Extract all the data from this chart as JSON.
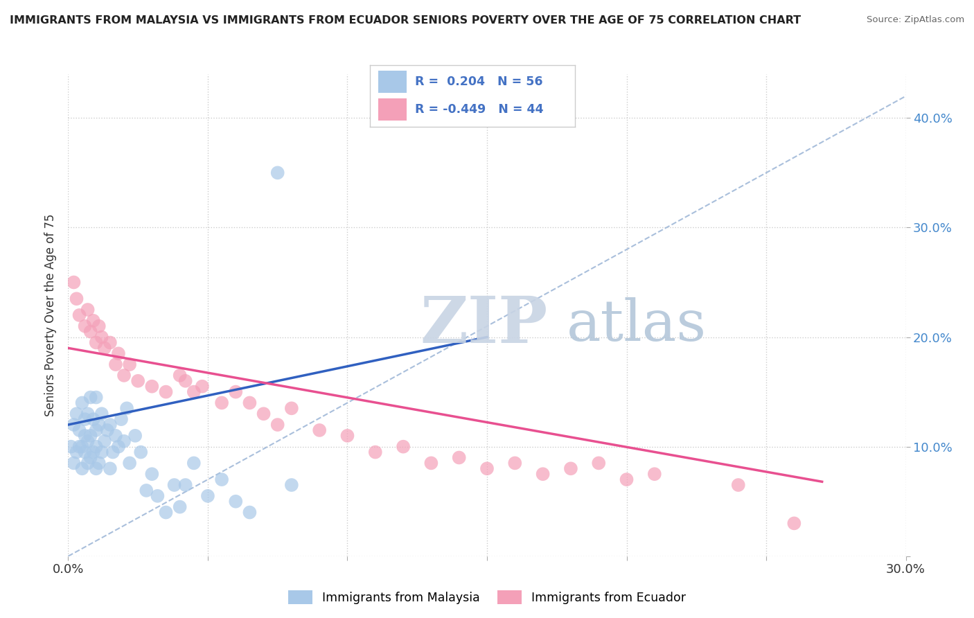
{
  "title": "IMMIGRANTS FROM MALAYSIA VS IMMIGRANTS FROM ECUADOR SENIORS POVERTY OVER THE AGE OF 75 CORRELATION CHART",
  "source": "Source: ZipAtlas.com",
  "ylabel": "Seniors Poverty Over the Age of 75",
  "xlim": [
    0.0,
    0.3
  ],
  "ylim": [
    0.0,
    0.44
  ],
  "xticks": [
    0.0,
    0.05,
    0.1,
    0.15,
    0.2,
    0.25,
    0.3
  ],
  "yticks": [
    0.0,
    0.1,
    0.2,
    0.3,
    0.4
  ],
  "malaysia_R": 0.204,
  "malaysia_N": 56,
  "ecuador_R": -0.449,
  "ecuador_N": 44,
  "malaysia_color": "#a8c8e8",
  "ecuador_color": "#f4a0b8",
  "malaysia_line_color": "#3060c0",
  "ecuador_line_color": "#e85090",
  "background_color": "#ffffff",
  "grid_color": "#cccccc",
  "watermark_zip_color": "#c8d4e4",
  "watermark_atlas_color": "#b0c4d8",
  "malaysia_x": [
    0.001,
    0.002,
    0.002,
    0.003,
    0.003,
    0.004,
    0.004,
    0.005,
    0.005,
    0.005,
    0.006,
    0.006,
    0.006,
    0.007,
    0.007,
    0.007,
    0.008,
    0.008,
    0.008,
    0.009,
    0.009,
    0.01,
    0.01,
    0.01,
    0.01,
    0.011,
    0.011,
    0.012,
    0.012,
    0.013,
    0.014,
    0.015,
    0.015,
    0.016,
    0.017,
    0.018,
    0.019,
    0.02,
    0.021,
    0.022,
    0.024,
    0.026,
    0.028,
    0.03,
    0.032,
    0.035,
    0.038,
    0.04,
    0.042,
    0.045,
    0.05,
    0.055,
    0.06,
    0.065,
    0.075,
    0.08
  ],
  "malaysia_y": [
    0.1,
    0.085,
    0.12,
    0.095,
    0.13,
    0.1,
    0.115,
    0.08,
    0.1,
    0.14,
    0.095,
    0.11,
    0.125,
    0.085,
    0.105,
    0.13,
    0.09,
    0.11,
    0.145,
    0.095,
    0.125,
    0.08,
    0.1,
    0.115,
    0.145,
    0.085,
    0.12,
    0.095,
    0.13,
    0.105,
    0.115,
    0.08,
    0.12,
    0.095,
    0.11,
    0.1,
    0.125,
    0.105,
    0.135,
    0.085,
    0.11,
    0.095,
    0.06,
    0.075,
    0.055,
    0.04,
    0.065,
    0.045,
    0.065,
    0.085,
    0.055,
    0.07,
    0.05,
    0.04,
    0.35,
    0.065
  ],
  "ecuador_x": [
    0.002,
    0.003,
    0.004,
    0.006,
    0.007,
    0.008,
    0.009,
    0.01,
    0.011,
    0.012,
    0.013,
    0.015,
    0.017,
    0.018,
    0.02,
    0.022,
    0.025,
    0.03,
    0.035,
    0.04,
    0.042,
    0.045,
    0.048,
    0.055,
    0.06,
    0.065,
    0.07,
    0.075,
    0.08,
    0.09,
    0.1,
    0.11,
    0.12,
    0.13,
    0.14,
    0.15,
    0.16,
    0.17,
    0.18,
    0.19,
    0.2,
    0.21,
    0.24,
    0.26
  ],
  "ecuador_y": [
    0.25,
    0.235,
    0.22,
    0.21,
    0.225,
    0.205,
    0.215,
    0.195,
    0.21,
    0.2,
    0.19,
    0.195,
    0.175,
    0.185,
    0.165,
    0.175,
    0.16,
    0.155,
    0.15,
    0.165,
    0.16,
    0.15,
    0.155,
    0.14,
    0.15,
    0.14,
    0.13,
    0.12,
    0.135,
    0.115,
    0.11,
    0.095,
    0.1,
    0.085,
    0.09,
    0.08,
    0.085,
    0.075,
    0.08,
    0.085,
    0.07,
    0.075,
    0.065,
    0.03
  ],
  "malaysia_line_x0": 0.0,
  "malaysia_line_y0": 0.12,
  "malaysia_line_x1": 0.15,
  "malaysia_line_y1": 0.2,
  "ecuador_line_x0": 0.0,
  "ecuador_line_y0": 0.19,
  "ecuador_line_x1": 0.27,
  "ecuador_line_y1": 0.068,
  "diag_line_x0": 0.0,
  "diag_line_y0": 0.0,
  "diag_line_x1": 0.3,
  "diag_line_y1": 0.42
}
